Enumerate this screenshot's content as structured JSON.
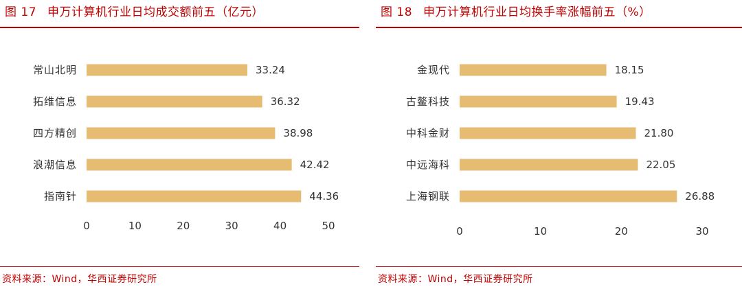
{
  "left_panel": {
    "figure_label": "图 17",
    "title": "申万计算机行业日均成交额前五（亿元）",
    "source": "资料来源：Wind，华西证券研究所",
    "chart_data": {
      "type": "bar",
      "orientation": "horizontal",
      "title": "申万计算机行业日均成交额前五（亿元）",
      "categories": [
        "常山北明",
        "拓维信息",
        "四方精创",
        "浪潮信息",
        "指南针"
      ],
      "values": [
        33.24,
        36.32,
        38.98,
        42.42,
        44.36
      ],
      "value_labels": [
        "33.24",
        "36.32",
        "38.98",
        "42.42",
        "44.36"
      ],
      "xlim": [
        0,
        50
      ],
      "xticks": [
        "0",
        "10",
        "20",
        "30",
        "40",
        "50"
      ],
      "grid": false,
      "bar_color": "#e6bc73"
    }
  },
  "right_panel": {
    "figure_label": "图 18",
    "title": "申万计算机行业日均换手率涨幅前五（%）",
    "source": "资料来源：Wind，华西证券研究所",
    "chart_data": {
      "type": "bar",
      "orientation": "horizontal",
      "title": "申万计算机行业日均换手率涨幅前五（%）",
      "categories": [
        "金现代",
        "古鳌科技",
        "中科金财",
        "中远海科",
        "上海钢联"
      ],
      "values": [
        18.15,
        19.43,
        21.8,
        22.05,
        26.88
      ],
      "value_labels": [
        "18.15",
        "19.43",
        "21.80",
        "22.05",
        "26.88"
      ],
      "xlim": [
        0,
        30
      ],
      "xticks": [
        "0",
        "10",
        "20",
        "30"
      ],
      "grid": false,
      "bar_color": "#e6bc73"
    }
  },
  "colors": {
    "accent": "#c00000",
    "bar": "#e6bc73",
    "text": "#333333"
  }
}
